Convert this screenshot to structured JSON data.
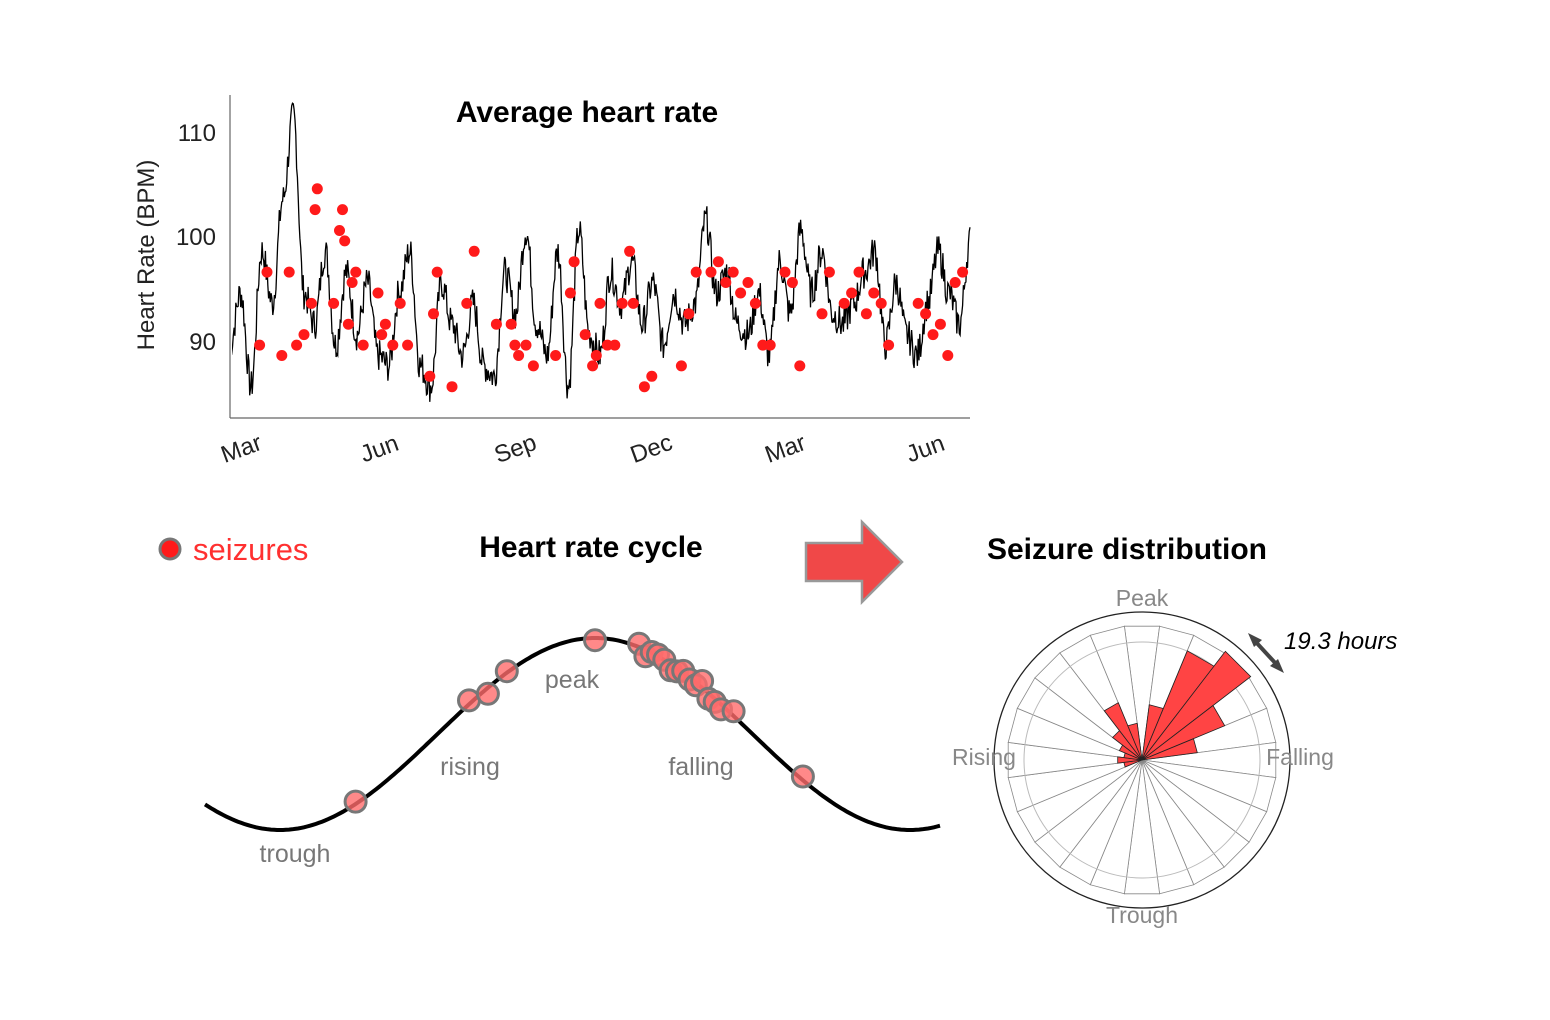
{
  "top_chart": {
    "title": "Average heart rate",
    "ylabel": "Heart Rate (BPM)",
    "yticks": [
      "110",
      "100",
      "90"
    ],
    "xticks": [
      "Mar",
      "Jun",
      "Sep",
      "Dec",
      "Mar",
      "Jun"
    ]
  },
  "legend": {
    "label": "seizures",
    "color": "#ff0000"
  },
  "cycle": {
    "title": "Heart rate cycle",
    "labels": {
      "trough": "trough",
      "rising": "rising",
      "peak": "peak",
      "falling": "falling"
    }
  },
  "distribution": {
    "title": "Seizure distribution",
    "labels": {
      "peak": "Peak",
      "rising": "Rising",
      "falling": "Falling",
      "trough": "Trough"
    },
    "period_label": "19.3 hours"
  },
  "colors": {
    "line": "#000000",
    "seizure": "#ff1a1a",
    "seizure_light": "#ff6b6b",
    "arrow": "#f04848"
  },
  "chart_data": [
    {
      "type": "line",
      "title": "Average heart rate",
      "ylabel": "Heart Rate (BPM)",
      "x_ticks": [
        "Mar",
        "Jun",
        "Sep",
        "Dec",
        "Mar",
        "Jun"
      ],
      "ylim": [
        83,
        114
      ],
      "series": [
        {
          "name": "",
          "values": [
            90,
            95,
            86,
            99,
            94,
            104,
            112,
            95,
            92,
            99,
            90,
            97,
            91,
            96,
            89,
            88,
            95,
            99,
            88,
            86,
            96,
            92,
            89,
            94,
            88,
            87,
            97,
            93,
            101,
            92,
            89,
            99,
            86,
            101,
            91,
            89,
            97,
            94,
            98,
            92,
            96,
            90,
            95,
            92,
            94,
            102,
            95,
            97,
            92,
            91,
            95,
            89,
            98,
            93,
            101,
            95,
            99,
            93,
            92,
            94,
            97,
            99,
            90,
            96,
            91,
            89,
            94,
            99,
            95,
            92,
            100
          ]
        },
        {
          "name": "seizures",
          "points": [
            [
              0.04,
              90
            ],
            [
              0.05,
              97
            ],
            [
              0.07,
              89
            ],
            [
              0.08,
              97
            ],
            [
              0.09,
              90
            ],
            [
              0.1,
              91
            ],
            [
              0.11,
              94
            ],
            [
              0.115,
              103
            ],
            [
              0.118,
              105
            ],
            [
              0.14,
              94
            ],
            [
              0.148,
              101
            ],
            [
              0.152,
              103
            ],
            [
              0.155,
              100
            ],
            [
              0.16,
              92
            ],
            [
              0.165,
              96
            ],
            [
              0.17,
              97
            ],
            [
              0.18,
              90
            ],
            [
              0.2,
              95
            ],
            [
              0.205,
              91
            ],
            [
              0.21,
              92
            ],
            [
              0.22,
              90
            ],
            [
              0.23,
              94
            ],
            [
              0.24,
              90
            ],
            [
              0.27,
              87
            ],
            [
              0.275,
              93
            ],
            [
              0.28,
              97
            ],
            [
              0.3,
              86
            ],
            [
              0.32,
              94
            ],
            [
              0.33,
              99
            ],
            [
              0.36,
              92
            ],
            [
              0.38,
              92
            ],
            [
              0.385,
              90
            ],
            [
              0.39,
              89
            ],
            [
              0.4,
              90
            ],
            [
              0.41,
              88
            ],
            [
              0.44,
              89
            ],
            [
              0.46,
              95
            ],
            [
              0.465,
              98
            ],
            [
              0.48,
              91
            ],
            [
              0.49,
              88
            ],
            [
              0.495,
              89
            ],
            [
              0.5,
              94
            ],
            [
              0.51,
              90
            ],
            [
              0.52,
              90
            ],
            [
              0.53,
              94
            ],
            [
              0.54,
              99
            ],
            [
              0.545,
              94
            ],
            [
              0.56,
              86
            ],
            [
              0.57,
              87
            ],
            [
              0.61,
              88
            ],
            [
              0.62,
              93
            ],
            [
              0.63,
              97
            ],
            [
              0.65,
              97
            ],
            [
              0.66,
              98
            ],
            [
              0.67,
              96
            ],
            [
              0.68,
              97
            ],
            [
              0.69,
              95
            ],
            [
              0.7,
              96
            ],
            [
              0.71,
              94
            ],
            [
              0.72,
              90
            ],
            [
              0.73,
              90
            ],
            [
              0.75,
              97
            ],
            [
              0.76,
              96
            ],
            [
              0.77,
              88
            ],
            [
              0.8,
              93
            ],
            [
              0.81,
              97
            ],
            [
              0.83,
              94
            ],
            [
              0.84,
              95
            ],
            [
              0.85,
              97
            ],
            [
              0.86,
              93
            ],
            [
              0.87,
              95
            ],
            [
              0.88,
              94
            ],
            [
              0.89,
              90
            ],
            [
              0.93,
              94
            ],
            [
              0.94,
              93
            ],
            [
              0.95,
              91
            ],
            [
              0.96,
              92
            ],
            [
              0.97,
              89
            ],
            [
              0.98,
              96
            ],
            [
              0.99,
              97
            ]
          ]
        }
      ]
    },
    {
      "type": "line",
      "title": "Heart rate cycle",
      "series": [
        {
          "name": "seizures",
          "phase_points": [
            0.12,
            0.3,
            0.33,
            0.36,
            0.5,
            0.57,
            0.58,
            0.59,
            0.6,
            0.61,
            0.62,
            0.63,
            0.64,
            0.65,
            0.66,
            0.67,
            0.68,
            0.69,
            0.7,
            0.72,
            0.83
          ]
        }
      ]
    },
    {
      "type": "bar",
      "title": "Seizure distribution",
      "categories": [
        "Peak",
        "",
        "",
        "",
        "",
        "",
        "Falling",
        "",
        "",
        "",
        "",
        "",
        "Trough",
        "",
        "",
        "",
        "",
        "",
        "Rising",
        "",
        "",
        "",
        "",
        ""
      ],
      "series": [
        {
          "name": "seizures",
          "values": [
            0.0,
            0.35,
            0.85,
            1.0,
            0.62,
            0.35,
            0.0,
            0.0,
            0.0,
            0.0,
            0.0,
            0.0,
            0.0,
            0.0,
            0.0,
            0.0,
            0.0,
            0.05,
            0.1,
            0.05,
            0.1,
            0.2,
            0.4,
            0.2
          ]
        }
      ]
    }
  ]
}
